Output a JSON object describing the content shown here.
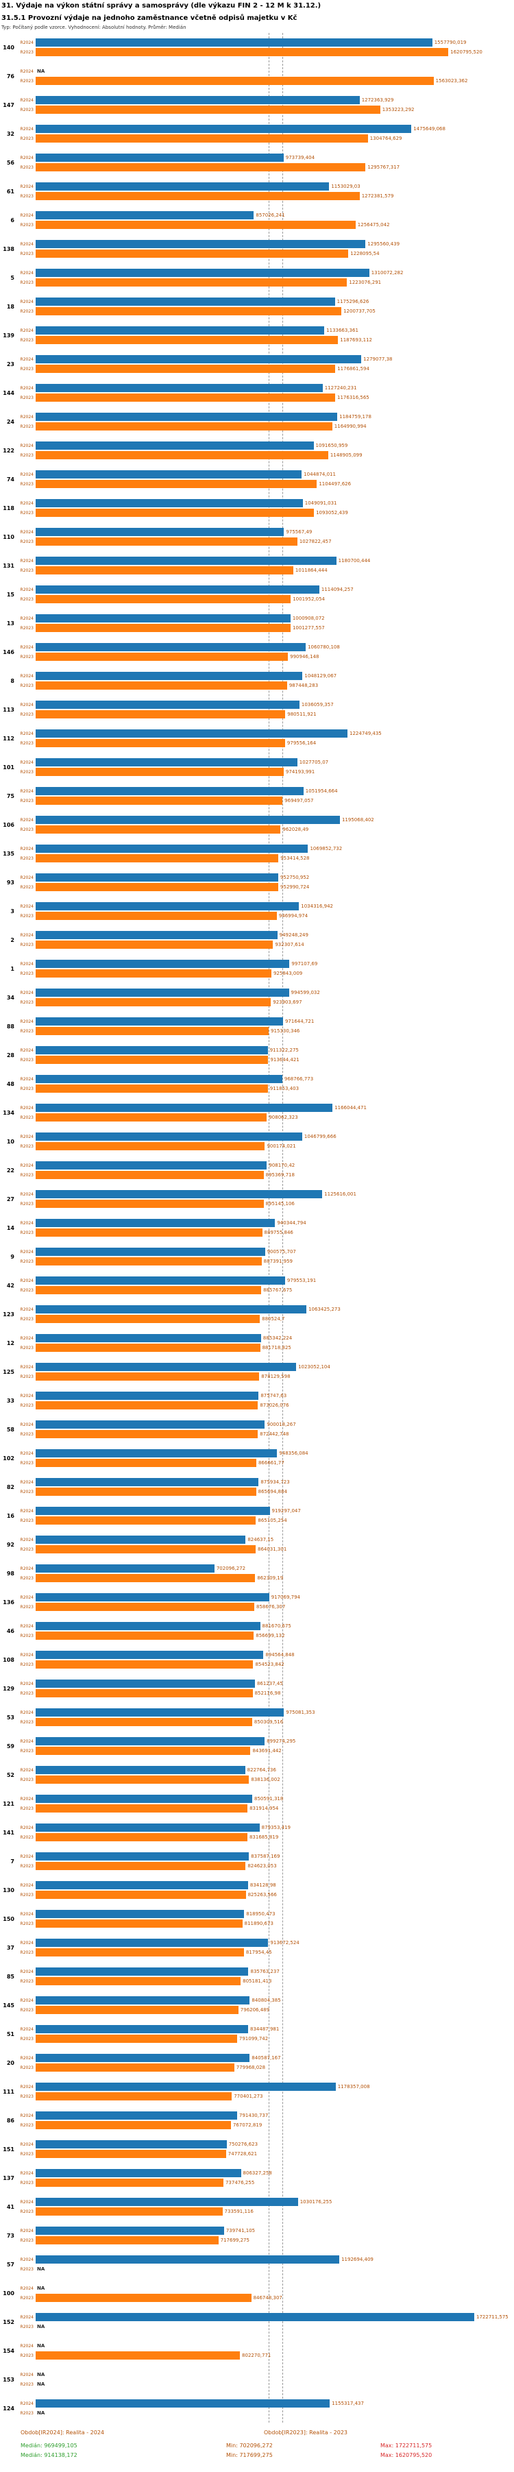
{
  "title": "31. Výdaje na výkon státní správy a samosprávy (dle výkazu FIN 2 - 12 M k 31.12.)",
  "subtitle": "31.5.1 Provozní výdaje na jednoho zaměstnance včetně odpisů majetku v Kč",
  "meta": "Typ: Počítaný podle vzorce. Vyhodnocení: Absolutní hodnoty. Průměr: Medián",
  "colors": {
    "bar_2024": "#1f77b4",
    "bar_2023": "#ff7f0e",
    "value_label": "#b45309",
    "median_stat": "#2e9e2e",
    "min_stat": "#b45309",
    "max_stat": "#d62728"
  },
  "chart_data": {
    "type": "bar",
    "orientation": "horizontal",
    "na_label": "NA",
    "xlim": [
      0,
      1722712
    ],
    "legend_position": "bottom",
    "categories": [
      "140",
      "76",
      "147",
      "32",
      "56",
      "61",
      "6",
      "138",
      "5",
      "18",
      "139",
      "23",
      "144",
      "24",
      "122",
      "74",
      "118",
      "110",
      "131",
      "15",
      "13",
      "146",
      "8",
      "113",
      "112",
      "101",
      "75",
      "106",
      "135",
      "93",
      "3",
      "2",
      "1",
      "34",
      "88",
      "28",
      "48",
      "134",
      "10",
      "22",
      "27",
      "14",
      "9",
      "42",
      "123",
      "12",
      "125",
      "33",
      "58",
      "102",
      "82",
      "16",
      "92",
      "98",
      "136",
      "46",
      "108",
      "129",
      "53",
      "59",
      "52",
      "121",
      "141",
      "7",
      "130",
      "150",
      "37",
      "85",
      "145",
      "51",
      "20",
      "111",
      "86",
      "151",
      "137",
      "41",
      "73",
      "57",
      "100",
      "152",
      "154",
      "153",
      "124"
    ],
    "series": [
      {
        "name": "R2024",
        "color": "#1f77b4",
        "values": [
          "1557790,019",
          "NA",
          "1272363,929",
          "1475649,068",
          "973739,404",
          "1153029,03",
          "857026,241",
          "1295560,439",
          "1310072,282",
          "1175296,626",
          "1133663,361",
          "1279077,38",
          "1127240,231",
          "1184759,178",
          "1091650,959",
          "1044874,011",
          "1049091,031",
          "975567,49",
          "1180700,444",
          "1114094,257",
          "1000908,072",
          "1060780,108",
          "1048129,067",
          "1036059,357",
          "1224749,435",
          "1027705,07",
          "1051954,664",
          "1195068,402",
          "1069852,732",
          "952750,952",
          "1034316,942",
          "949248,249",
          "997107,69",
          "994599,032",
          "971644,721",
          "911322,275",
          "968766,773",
          "1166044,471",
          "1046799,666",
          "908170,42",
          "1125616,001",
          "940344,794",
          "900575,707",
          "979553,191",
          "1063425,273",
          "885342,224",
          "1023052,104",
          "875747,63",
          "900018,267",
          "948356,084",
          "875934,723",
          "919297,047",
          "824637,15",
          "702096,272",
          "917069,794",
          "881670,675",
          "894564,848",
          "861237,45",
          "975081,353",
          "899274,295",
          "822764,736",
          "850591,318",
          "879353,419",
          "837587,169",
          "834128,98",
          "818950,473",
          "913672,524",
          "835763,237",
          "840804,385",
          "834487,981",
          "840587,167",
          "1178357,008",
          "791430,737",
          "750276,623",
          "806327,258",
          "1030176,255",
          "739741,105",
          "1192694,409",
          "NA",
          "1722711,575",
          "NA",
          "NA",
          "1155317,437"
        ]
      },
      {
        "name": "R2023",
        "color": "#ff7f0e",
        "values": [
          "1620795,520",
          "1563023,362",
          "1353223,292",
          "1304764,629",
          "1295767,317",
          "1272381,579",
          "1256475,042",
          "1228095,54",
          "1223076,291",
          "1200737,705",
          "1187693,112",
          "1176861,594",
          "1176316,565",
          "1164990,994",
          "1148905,099",
          "1104497,626",
          "1093052,439",
          "1027822,457",
          "1011864,444",
          "1001952,054",
          "1001277,557",
          "990946,148",
          "987448,283",
          "980511,921",
          "979556,164",
          "974193,991",
          "969497,057",
          "962028,49",
          "953414,528",
          "952990,724",
          "946994,974",
          "932307,614",
          "925843,009",
          "923903,697",
          "915330,346",
          "913644,421",
          "911853,403",
          "908062,323",
          "900174,021",
          "895369,718",
          "895145,106",
          "889755,846",
          "887391,959",
          "885767,675",
          "880524,7",
          "881718,825",
          "878129,598",
          "873026,076",
          "872442,748",
          "866661,77",
          "865694,884",
          "865105,254",
          "864031,301",
          "862309,19",
          "858676,307",
          "856699,132",
          "854523,842",
          "852116,98",
          "850309,516",
          "843691,442",
          "838136,002",
          "831914,954",
          "831685,819",
          "824623,053",
          "825263,566",
          "811890,673",
          "817954,45",
          "805181,413",
          "796206,489",
          "791099,742",
          "779968,028",
          "770401,273",
          "767072,819",
          "747728,621",
          "737476,255",
          "733591,116",
          "717699,275",
          "NA",
          "846748,307",
          "NA",
          "802270,771",
          "NA",
          "NA"
        ]
      }
    ],
    "legend": {
      "y2024": "Obdob[IR2024]: Realita - 2024",
      "y2023": "Obdob[IR2023]: Realita - 2023"
    },
    "stats_labels": {
      "median": "Medián:",
      "min": "Min:",
      "max": "Max:"
    },
    "stats_2024": {
      "median": "969499,105",
      "min": "702096,272",
      "max": "1722711,575"
    },
    "stats_2023": {
      "median": "914138,172",
      "min": "717699,275",
      "max": "1620795,520"
    }
  }
}
